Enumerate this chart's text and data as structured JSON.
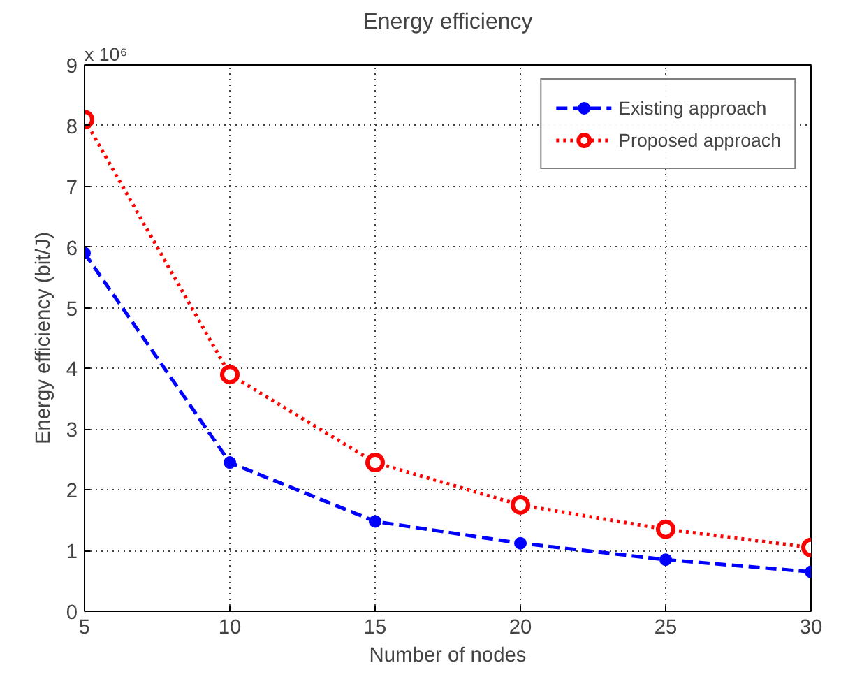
{
  "chart_data": {
    "type": "line",
    "title": "Energy efficiency",
    "xlabel": "Number of nodes",
    "ylabel": "Energy efficiency (bit/J)",
    "annotations": [
      "x 10⁶"
    ],
    "x": [
      5,
      10,
      15,
      20,
      25,
      30
    ],
    "series": [
      {
        "name": "Existing approach",
        "color": "#0000ff",
        "values": [
          5.9,
          2.45,
          1.48,
          1.12,
          0.85,
          0.65
        ],
        "marker": "circle",
        "line_style": "dashed"
      },
      {
        "name": "Proposed approach",
        "color": "#ff0000",
        "values": [
          8.1,
          3.9,
          2.45,
          1.75,
          1.35,
          1.05
        ],
        "marker": "circle",
        "line_style": "dotted"
      }
    ],
    "xlim": [
      5,
      30
    ],
    "ylim": [
      0,
      9
    ],
    "xticks": [
      5,
      10,
      15,
      20,
      25,
      30
    ],
    "yticks": [
      0,
      1,
      2,
      3,
      4,
      5,
      6,
      7,
      8,
      9
    ],
    "grid": true,
    "legend": "top right"
  }
}
